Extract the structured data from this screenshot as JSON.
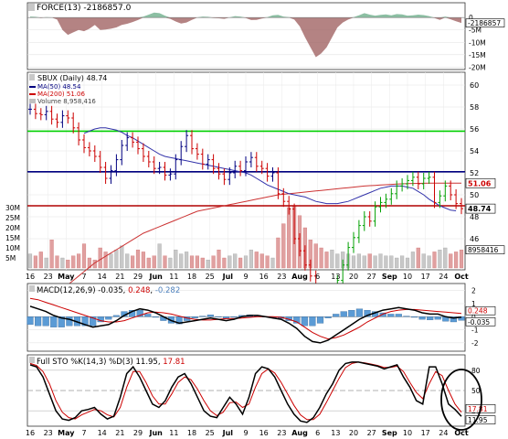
{
  "chart_data": [
    {
      "type": "area",
      "panel": "force",
      "title": "FORCE(13) -2186857.0",
      "y_ticks": [
        "0",
        "-5M",
        "-10M",
        "-15M",
        "-20M"
      ],
      "ylim": [
        -21000000,
        6000000
      ],
      "value_label": "-2186857",
      "colors": {
        "positive": "#2e8b57",
        "negative": "#9b5a5a"
      },
      "values": [
        400000,
        300000,
        -200000,
        200000,
        100000,
        -800000,
        -5000000,
        -7000000,
        -6000000,
        -5000000,
        -5500000,
        -4500000,
        -3000000,
        -5000000,
        -4800000,
        -4500000,
        -4000000,
        -3000000,
        -2500000,
        -1800000,
        -1000000,
        400000,
        1200000,
        2000000,
        1800000,
        800000,
        -500000,
        -1600000,
        -2400000,
        -2000000,
        -900000,
        100000,
        400000,
        300000,
        -200000,
        -300000,
        -500000,
        100000,
        600000,
        400000,
        -200000,
        -1000000,
        -900000,
        -400000,
        200000,
        900000,
        1100000,
        400000,
        200000,
        -800000,
        -3500000,
        -8000000,
        -12000000,
        -16000000,
        -14500000,
        -12000000,
        -8000000,
        -4000000,
        -2000000,
        -800000,
        200000,
        900000,
        1800000,
        1200000,
        800000,
        1100000,
        1300000,
        900000,
        1400000,
        1300000,
        800000,
        900000,
        1200000,
        1000000,
        600000,
        -200000,
        -900000,
        400000,
        -700000,
        -1500000,
        -2187000
      ]
    },
    {
      "type": "line",
      "panel": "price",
      "legend": [
        "SBUX (Daily) 48.74",
        "MA(50) 48.54",
        "MA(200) 51.06",
        "Volume 8,958,416"
      ],
      "y_ticks": [
        "60",
        "58",
        "56",
        "54",
        "52",
        "50",
        "48",
        "46"
      ],
      "ylim": [
        44,
        61
      ],
      "close": [
        57.8,
        57.4,
        57.3,
        57.6,
        56.9,
        56.6,
        57.2,
        57.0,
        56.1,
        55.0,
        54.3,
        54.0,
        53.5,
        52.5,
        51.5,
        52.2,
        53.2,
        54.5,
        55.2,
        54.8,
        54.2,
        53.5,
        53.0,
        52.4,
        52.5,
        51.8,
        51.9,
        53.2,
        54.4,
        55.4,
        54.2,
        53.7,
        52.8,
        53.2,
        52.4,
        51.9,
        51.4,
        52.0,
        52.6,
        52.2,
        53.0,
        53.4,
        52.6,
        52.4,
        51.7,
        52.0,
        50.1,
        49.4,
        48.7,
        46.0,
        44.9,
        43.6,
        42.6,
        41.4,
        40.2,
        39.3,
        40.6,
        42.2,
        43.6,
        45.2,
        46.1,
        47.2,
        48.0,
        47.6,
        48.9,
        49.3,
        49.6,
        50.1,
        50.8,
        51.0,
        51.3,
        51.6,
        51.0,
        51.5,
        51.6,
        49.3,
        49.9,
        50.8,
        50.0,
        49.2,
        48.74
      ],
      "ma50": [
        null,
        null,
        null,
        null,
        null,
        null,
        null,
        null,
        null,
        null,
        55.6,
        55.8,
        56.0,
        56.1,
        56.1,
        56.0,
        55.9,
        55.7,
        55.4,
        55.2,
        54.9,
        54.6,
        54.3,
        54.0,
        53.7,
        53.5,
        53.4,
        53.3,
        53.2,
        53.1,
        53.0,
        52.9,
        52.8,
        52.7,
        52.6,
        52.5,
        52.4,
        52.3,
        52.2,
        52.1,
        52.0,
        51.8,
        51.5,
        51.2,
        50.9,
        50.7,
        50.5,
        50.3,
        50.1,
        50.0,
        49.9,
        49.8,
        49.6,
        49.4,
        49.3,
        49.2,
        49.2,
        49.2,
        49.3,
        49.4,
        49.6,
        49.8,
        50.0,
        50.2,
        50.4,
        50.6,
        50.7,
        50.8,
        50.8,
        50.8,
        50.7,
        50.6,
        50.3,
        50.0,
        49.6,
        49.3,
        49.0,
        48.8,
        48.6,
        48.54
      ],
      "ma200": [
        39.0,
        39.4,
        39.8,
        40.2,
        40.6,
        41.0,
        41.4,
        41.8,
        42.2,
        42.6,
        43.0,
        43.4,
        43.8,
        44.1,
        44.4,
        44.7,
        45.0,
        45.3,
        45.6,
        45.9,
        46.2,
        46.5,
        46.7,
        46.9,
        47.1,
        47.3,
        47.5,
        47.7,
        47.9,
        48.1,
        48.3,
        48.5,
        48.6,
        48.7,
        48.8,
        48.9,
        49.0,
        49.1,
        49.2,
        49.3,
        49.4,
        49.5,
        49.6,
        49.7,
        49.8,
        49.9,
        50.0,
        50.05,
        50.1,
        50.15,
        50.2,
        50.25,
        50.3,
        50.35,
        50.4,
        50.45,
        50.5,
        50.55,
        50.6,
        50.65,
        50.7,
        50.75,
        50.8,
        50.83,
        50.86,
        50.89,
        50.92,
        50.95,
        50.98,
        51.0,
        51.02,
        51.03,
        51.04,
        51.05,
        51.06,
        51.06,
        51.06,
        51.06,
        51.06,
        51.06,
        51.06
      ],
      "horizontal_lines": [
        {
          "value": 55.8,
          "color": "#00d000"
        },
        {
          "value": 52.1,
          "color": "#000080"
        },
        {
          "value": 49.0,
          "color": "#b00000"
        }
      ],
      "right_labels": [
        {
          "text": "51.06",
          "value": 51.06,
          "color": "#cc0000",
          "bg": "#ffffff"
        },
        {
          "text": "48.74",
          "value": 48.74,
          "color": "#000000",
          "bg": "#ffffff"
        }
      ],
      "volume": {
        "y_ticks": [
          "30M",
          "25M",
          "20M",
          "15M",
          "10M",
          "5M"
        ],
        "label": "8958416",
        "values": [
          7,
          6,
          8,
          5,
          14,
          6,
          5,
          4,
          6,
          7,
          12,
          5,
          4,
          10,
          8,
          7,
          9,
          11,
          7,
          6,
          9,
          8,
          5,
          6,
          12,
          6,
          5,
          9,
          7,
          8,
          6,
          6,
          5,
          4,
          6,
          9,
          5,
          6,
          7,
          5,
          6,
          9,
          8,
          7,
          6,
          5,
          15,
          22,
          30,
          31,
          26,
          20,
          14,
          12,
          10,
          8,
          9,
          7,
          8,
          7,
          6,
          7,
          6,
          7,
          6,
          7,
          6,
          6,
          5,
          6,
          5,
          8,
          10,
          7,
          6,
          8,
          9,
          10,
          7,
          8,
          9
        ]
      },
      "x_ticks": [
        "16",
        "23",
        "May",
        "7",
        "14",
        "21",
        "29",
        "Jun",
        "11",
        "18",
        "25",
        "Jul",
        "9",
        "16",
        "23",
        "Aug",
        "6",
        "13",
        "20",
        "27",
        "Sep",
        "10",
        "17",
        "24",
        "Oct"
      ]
    },
    {
      "type": "line",
      "panel": "macd",
      "title": "MACD(12,26,9) -0.035, 0.248, -0.282",
      "legend_values": [
        "-0.035",
        "0.248",
        "-0.282"
      ],
      "y_ticks": [
        "2",
        "1",
        "0",
        "-1",
        "-2"
      ],
      "ylim": [
        -2.5,
        2.4
      ],
      "right_labels": [
        {
          "text": "0.248",
          "value": 0.248,
          "color": "#cc0000"
        },
        {
          "text": "-0.035",
          "value": -0.035,
          "color": "#000000"
        }
      ],
      "macd": [
        0.8,
        0.6,
        0.4,
        0.1,
        -0.1,
        -0.2,
        -0.4,
        -0.6,
        -0.8,
        -0.7,
        -0.6,
        -0.3,
        0.1,
        0.4,
        0.6,
        0.5,
        0.3,
        0.0,
        -0.3,
        -0.5,
        -0.4,
        -0.3,
        -0.2,
        -0.1,
        -0.2,
        -0.3,
        -0.2,
        0.0,
        0.1,
        0.1,
        0.0,
        -0.1,
        -0.2,
        -0.5,
        -0.9,
        -1.5,
        -1.9,
        -2.0,
        -1.8,
        -1.4,
        -1.0,
        -0.6,
        -0.2,
        0.1,
        0.3,
        0.5,
        0.6,
        0.7,
        0.6,
        0.5,
        0.3,
        0.2,
        0.2,
        0.0,
        -0.1,
        -0.035
      ],
      "signal": [
        1.4,
        1.3,
        1.1,
        0.9,
        0.7,
        0.5,
        0.3,
        0.1,
        -0.1,
        -0.3,
        -0.4,
        -0.4,
        -0.3,
        -0.1,
        0.1,
        0.3,
        0.35,
        0.3,
        0.2,
        0.05,
        -0.1,
        -0.2,
        -0.25,
        -0.25,
        -0.2,
        -0.15,
        -0.15,
        -0.1,
        -0.05,
        0.0,
        0.0,
        0.0,
        -0.05,
        -0.2,
        -0.4,
        -0.8,
        -1.2,
        -1.5,
        -1.7,
        -1.6,
        -1.4,
        -1.1,
        -0.8,
        -0.4,
        -0.1,
        0.2,
        0.4,
        0.5,
        0.55,
        0.55,
        0.5,
        0.45,
        0.4,
        0.35,
        0.3,
        0.248
      ],
      "x_ticks": [
        "16",
        "23",
        "May",
        "7",
        "14",
        "21",
        "29",
        "Jun",
        "11",
        "18",
        "25",
        "Jul",
        "9",
        "16",
        "23",
        "Aug",
        "6",
        "13",
        "20",
        "27",
        "Sep",
        "10",
        "17",
        "24",
        "Oct"
      ]
    },
    {
      "type": "line",
      "panel": "stochastic",
      "title": "Full STO %K(14,3) %D(3) 11.95, 17.81",
      "y_ticks": [
        "80",
        "50",
        "20"
      ],
      "ylim": [
        0,
        100
      ],
      "right_labels": [
        {
          "text": "17.81",
          "value": 17.81,
          "color": "#cc0000"
        },
        {
          "text": "11.95",
          "value": 11.95,
          "color": "#000000"
        }
      ],
      "k": [
        88,
        85,
        70,
        45,
        20,
        8,
        6,
        10,
        20,
        22,
        25,
        15,
        8,
        12,
        40,
        75,
        85,
        70,
        50,
        30,
        25,
        35,
        55,
        70,
        75,
        60,
        40,
        20,
        12,
        10,
        25,
        40,
        30,
        15,
        40,
        75,
        85,
        82,
        70,
        50,
        30,
        15,
        5,
        3,
        10,
        25,
        45,
        60,
        80,
        90,
        92,
        92,
        90,
        88,
        86,
        82,
        85,
        88,
        70,
        55,
        35,
        30,
        85,
        85,
        60,
        30,
        22,
        11.95
      ],
      "d": [
        90,
        87,
        78,
        60,
        35,
        18,
        10,
        8,
        14,
        18,
        22,
        20,
        14,
        11,
        25,
        55,
        78,
        78,
        62,
        42,
        30,
        30,
        45,
        62,
        70,
        66,
        52,
        35,
        20,
        13,
        18,
        32,
        33,
        25,
        30,
        55,
        75,
        82,
        76,
        62,
        45,
        28,
        14,
        7,
        7,
        15,
        32,
        50,
        68,
        84,
        90,
        92,
        91,
        89,
        87,
        84,
        84,
        86,
        78,
        62,
        47,
        38,
        60,
        78,
        72,
        50,
        30,
        17.81
      ],
      "x_ticks": [
        "16",
        "23",
        "May",
        "7",
        "14",
        "21",
        "29",
        "Jun",
        "11",
        "18",
        "25",
        "Jul",
        "9",
        "16",
        "23",
        "Aug",
        "6",
        "13",
        "20",
        "27",
        "Sep",
        "10",
        "17",
        "24",
        "Oct"
      ]
    }
  ]
}
